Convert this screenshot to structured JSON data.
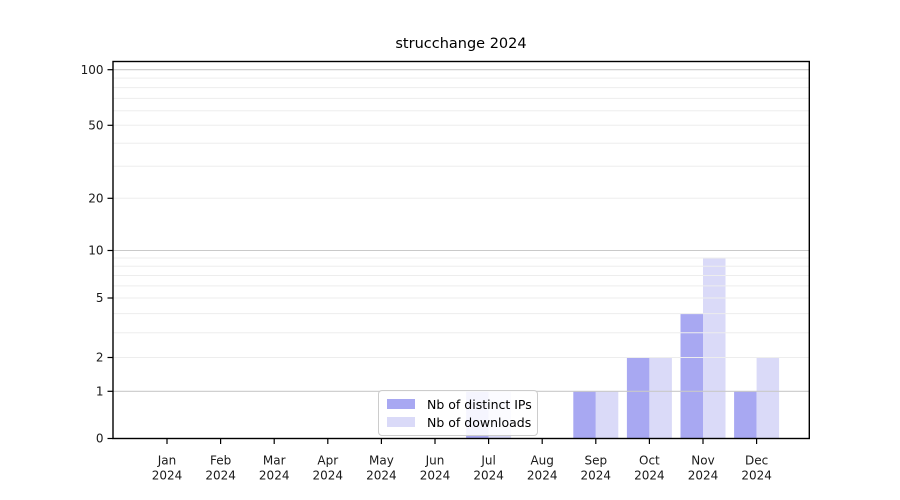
{
  "chart": {
    "title": "strucchange 2024"
  },
  "chart_data": {
    "type": "bar",
    "title": "strucchange 2024",
    "categories": [
      "Jan 2024",
      "Feb 2024",
      "Mar 2024",
      "Apr 2024",
      "May 2024",
      "Jun 2024",
      "Jul 2024",
      "Aug 2024",
      "Sep 2024",
      "Oct 2024",
      "Nov 2024",
      "Dec 2024"
    ],
    "month_labels": [
      "Jan",
      "Feb",
      "Mar",
      "Apr",
      "May",
      "Jun",
      "Jul",
      "Aug",
      "Sep",
      "Oct",
      "Nov",
      "Dec"
    ],
    "year": "2024",
    "series": [
      {
        "name": "Nb of distinct IPs",
        "color": "#a8a8f2",
        "values": [
          0,
          0,
          0,
          0,
          0,
          0,
          1,
          0,
          1,
          2,
          4,
          1
        ]
      },
      {
        "name": "Nb of downloads",
        "color": "#dadaf8",
        "values": [
          0,
          0,
          0,
          0,
          0,
          0,
          1,
          0,
          1,
          2,
          9,
          2
        ]
      }
    ],
    "y_axis": {
      "scale": "log1p",
      "ticks": [
        0,
        1,
        2,
        5,
        10,
        20,
        50,
        100
      ],
      "major_gridlines": [
        1,
        10,
        100
      ],
      "minor_gridlines": [
        2,
        3,
        4,
        5,
        6,
        7,
        8,
        9,
        20,
        30,
        40,
        50,
        60,
        70,
        80,
        90
      ],
      "range": [
        0,
        120
      ]
    },
    "grid": "horizontal",
    "legend_position": "bottom-center",
    "bar_layout": "grouped-pair",
    "colors": {
      "major_grid": "#c9c9c9",
      "minor_grid": "#ededed",
      "axis": "#000000",
      "tick_text": "#1a1a1a"
    }
  }
}
